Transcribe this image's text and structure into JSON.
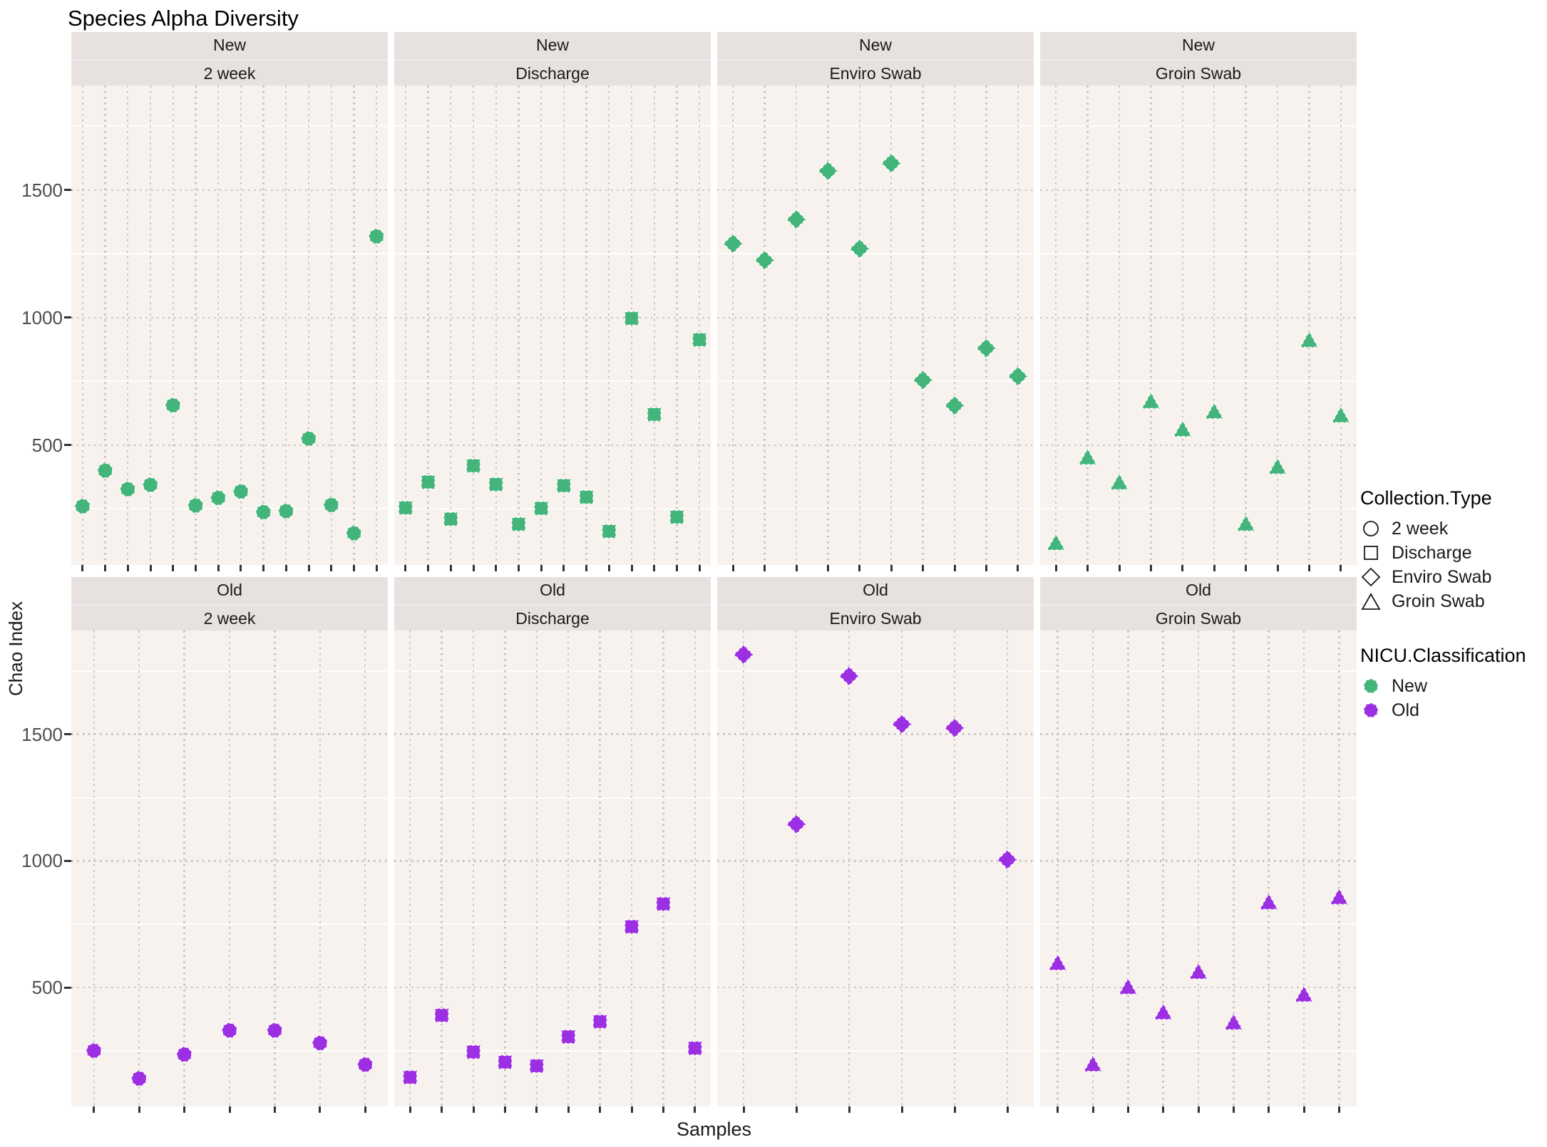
{
  "title": "Species Alpha Diversity",
  "axes": {
    "x_label": "Samples",
    "y_label": "Chao Index",
    "y_tick_labels": [
      "500",
      "1000",
      "1500"
    ]
  },
  "legend": {
    "shape_title": "Collection.Type",
    "shape_items": [
      {
        "label": "2 week",
        "shape": "circle"
      },
      {
        "label": "Discharge",
        "shape": "square"
      },
      {
        "label": "Enviro Swab",
        "shape": "diamond"
      },
      {
        "label": "Groin Swab",
        "shape": "triangle"
      }
    ],
    "color_title": "NICU.Classification",
    "color_items": [
      {
        "label": "New",
        "color": "#43b57a"
      },
      {
        "label": "Old",
        "color": "#9d2fe3"
      }
    ]
  },
  "chart_data": {
    "type": "scatter",
    "title": "Species Alpha Diversity",
    "xlabel": "Samples",
    "ylabel": "Chao Index",
    "y_ticks": [
      500,
      1000,
      1500
    ],
    "y_minor_ticks": [
      250,
      750,
      1250,
      1750
    ],
    "y_domain": [
      30,
      1910
    ],
    "x_tick_labels": "none",
    "grid": "dotted",
    "facet_rows": [
      "New",
      "Old"
    ],
    "facet_cols": [
      "2 week",
      "Discharge",
      "Enviro Swab",
      "Groin Swab"
    ],
    "shape_by": "Collection.Type",
    "color_by": "NICU.Classification",
    "shapes": {
      "2 week": "circle",
      "Discharge": "square",
      "Enviro Swab": "diamond",
      "Groin Swab": "triangle"
    },
    "colors": {
      "New": "#43b57a",
      "Old": "#9d2fe3"
    },
    "facets": [
      {
        "row": "New",
        "col": "2 week",
        "values": [
          260,
          400,
          327,
          344,
          656,
          263,
          293,
          318,
          237,
          241,
          525,
          265,
          154,
          1318
        ]
      },
      {
        "row": "New",
        "col": "Discharge",
        "values": [
          254,
          355,
          210,
          419,
          346,
          190,
          252,
          341,
          296,
          162,
          997,
          620,
          218,
          913
        ]
      },
      {
        "row": "New",
        "col": "Enviro Swab",
        "values": [
          1290,
          1225,
          1385,
          1575,
          1270,
          1605,
          755,
          655,
          880,
          770
        ]
      },
      {
        "row": "New",
        "col": "Groin Swab",
        "values": [
          115,
          450,
          352,
          670,
          560,
          630,
          190,
          413,
          910,
          615
        ]
      },
      {
        "row": "Old",
        "col": "2 week",
        "values": [
          250,
          140,
          235,
          330,
          330,
          280,
          195
        ]
      },
      {
        "row": "Old",
        "col": "Discharge",
        "values": [
          145,
          390,
          245,
          205,
          190,
          305,
          365,
          740,
          830,
          260
        ]
      },
      {
        "row": "Old",
        "col": "Enviro Swab",
        "values": [
          1815,
          1145,
          1730,
          1540,
          1525,
          1005
        ]
      },
      {
        "row": "Old",
        "col": "Groin Swab",
        "values": [
          595,
          195,
          500,
          400,
          560,
          360,
          835,
          470,
          855
        ]
      }
    ]
  }
}
